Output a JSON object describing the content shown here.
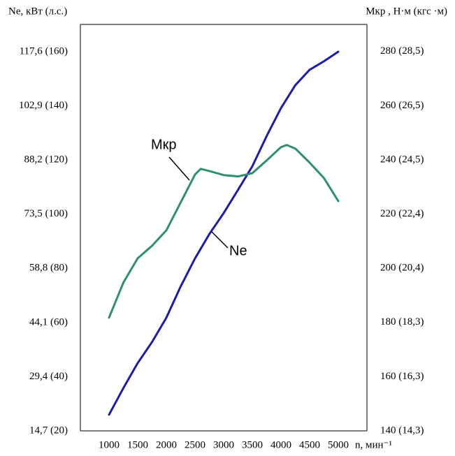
{
  "chart_data": {
    "type": "line",
    "y_title": "Ne, кВт (л.с.)",
    "y2_title": "Мкр , Н·м (кгс ·м)",
    "x_title": "n, мин⁻¹",
    "xlim": [
      500,
      5500
    ],
    "xticks": [
      1000,
      1500,
      2000,
      2500,
      3000,
      3500,
      4000,
      4500,
      5000
    ],
    "ylim": [
      14.7,
      125
    ],
    "yticks": [
      {
        "value": 14.7,
        "label": "14,7 (20)"
      },
      {
        "value": 29.4,
        "label": "29,4 (40)"
      },
      {
        "value": 44.1,
        "label": "44,1 (60)"
      },
      {
        "value": 58.8,
        "label": "58,8 (80)"
      },
      {
        "value": 73.5,
        "label": "73,5 (100)"
      },
      {
        "value": 88.2,
        "label": "88,2 (120)"
      },
      {
        "value": 102.9,
        "label": "102,9 (140)"
      },
      {
        "value": 117.6,
        "label": "117,6 (160)"
      }
    ],
    "y2lim": [
      140,
      290
    ],
    "y2ticks": [
      {
        "value": 140,
        "label": "140 (14,3)"
      },
      {
        "value": 160,
        "label": "160 (16,3)"
      },
      {
        "value": 180,
        "label": "180 (18,3)"
      },
      {
        "value": 200,
        "label": "200 (20,4)"
      },
      {
        "value": 220,
        "label": "220 (22,4)"
      },
      {
        "value": 240,
        "label": "240 (24,5)"
      },
      {
        "value": 260,
        "label": "260 (26,5)"
      },
      {
        "value": 280,
        "label": "280 (28,5)"
      }
    ],
    "series": [
      {
        "name": "Ne",
        "color": "#1c1caa",
        "axis": "y",
        "x": [
          1000,
          1250,
          1500,
          1750,
          2000,
          2250,
          2500,
          2750,
          3000,
          3250,
          3500,
          3750,
          4000,
          4250,
          4500,
          4750,
          5000
        ],
        "values": [
          19.1,
          26.3,
          33.1,
          38.8,
          45.4,
          53.9,
          61.5,
          68.1,
          73.8,
          80.1,
          86.5,
          94.7,
          102.3,
          108.5,
          112.7,
          115,
          117.6
        ]
      },
      {
        "name": "Мкр",
        "color": "#2e8f6c",
        "axis": "y2",
        "x": [
          1000,
          1250,
          1500,
          1750,
          2000,
          2250,
          2500,
          2600,
          2750,
          3000,
          3250,
          3500,
          3750,
          4000,
          4100,
          4250,
          4500,
          4750,
          5000
        ],
        "values": [
          181.8,
          194.7,
          203.7,
          208.3,
          214,
          224.3,
          234.6,
          236.7,
          235.9,
          234.4,
          233.9,
          235.1,
          239.8,
          244.7,
          245.5,
          244.2,
          239,
          233.3,
          224.8
        ]
      }
    ]
  }
}
